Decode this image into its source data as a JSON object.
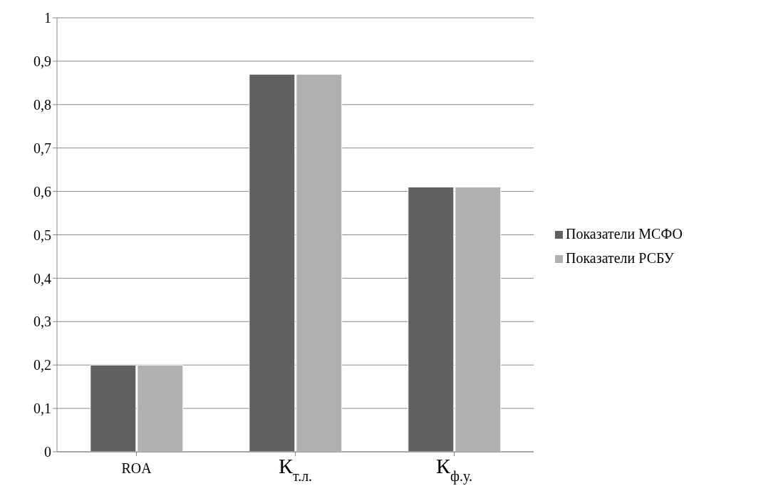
{
  "chart_data": {
    "type": "bar",
    "categories": [
      "ROA",
      "К$_{т.л.}$",
      "К$_{ф.у.}$"
    ],
    "series": [
      {
        "name": "Показатели МСФО",
        "color": "#606060",
        "values": [
          0.2,
          0.87,
          0.61
        ]
      },
      {
        "name": "Показатели РСБУ",
        "color": "#b0b0b0",
        "values": [
          0.2,
          0.87,
          0.61
        ]
      }
    ],
    "ylim": [
      0,
      1
    ],
    "yticks": [
      0,
      {
        "value": 0.1,
        "label": "0,1"
      },
      {
        "value": 0.2,
        "label": "0,2"
      },
      {
        "value": 0.3,
        "label": "0,3"
      },
      {
        "value": 0.4,
        "label": "0,4"
      },
      {
        "value": 0.5,
        "label": "0,5"
      },
      {
        "value": 0.6,
        "label": "0,6"
      },
      {
        "value": 0.7,
        "label": "0,7"
      },
      {
        "value": 0.8,
        "label": "0,8"
      },
      {
        "value": 0.9,
        "label": "0,9"
      },
      1
    ],
    "grid": "y",
    "legend": "right"
  }
}
